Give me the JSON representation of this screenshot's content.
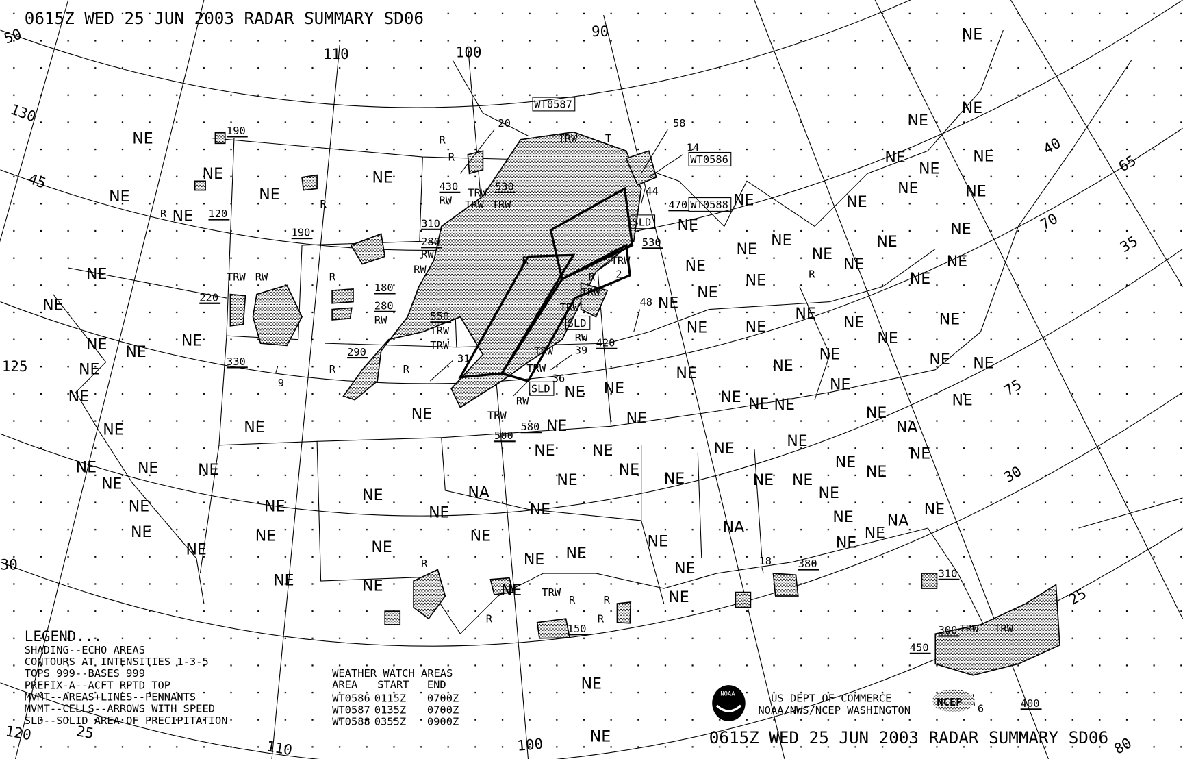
{
  "title_top": "0615Z WED 25 JUN 2003 RADAR SUMMARY SD06",
  "title_bottom": "0615Z WED 25 JUN 2003 RADAR SUMMARY SD06",
  "ne_label": "NE",
  "na_label": "NA",
  "legend": {
    "heading": "LEGEND...",
    "lines": [
      "SHADING--ECHO AREAS",
      "CONTOURS AT INTENSITIES 1-3-5",
      "TOPS 999--BASES 999",
      "PREFIX-A--ACFT RPTD TOP",
      "MVMT--AREAS+LINES--PENNANTS",
      "MVMT--CELLS--ARROWS WITH SPEED",
      "SLD--SOLID AREA OF PRECIPITATION"
    ]
  },
  "watch_table": {
    "heading": "WEATHER WATCH AREAS",
    "columns": [
      "AREA",
      "START",
      "END"
    ],
    "rows": [
      [
        "WT0586",
        "0115Z",
        "0700Z"
      ],
      [
        "WT0587",
        "0135Z",
        "0700Z"
      ],
      [
        "WT0588",
        "0355Z",
        "0900Z"
      ]
    ]
  },
  "credits": {
    "line1": "US DEPT OF COMMERCE",
    "line2": "NOAA/NWS/NCEP WASHINGTON",
    "noaa_logo": "NOAA",
    "ncep_logo": "NCEP"
  },
  "graticule_labels": [
    "50",
    "130",
    "45",
    "125",
    "120",
    "25",
    "110",
    "100",
    "110",
    "100",
    "90",
    "40",
    "65",
    "70",
    "35",
    "75",
    "30",
    "25",
    "80",
    "30"
  ],
  "tops": [
    "190",
    "120",
    "190",
    "220",
    "330",
    "180",
    "280",
    "290",
    "310",
    "280",
    "430",
    "530",
    "550",
    "500",
    "580",
    "420",
    "530",
    "470",
    "150",
    "380",
    "310",
    "300",
    "450",
    "400"
  ],
  "precip_types": [
    "R",
    "R",
    "R",
    "R",
    "R",
    "R",
    "R",
    "R",
    "R",
    "R",
    "R",
    "R",
    "R",
    "R",
    "R",
    "TRW",
    "RW",
    "RW",
    "RW",
    "RW",
    "RW",
    "RW",
    "RW",
    "TRW",
    "TRW",
    "TRW",
    "TRW",
    "TRW",
    "TRW",
    "TRW",
    "TRW",
    "TRW",
    "TRW",
    "TRW",
    "TRW",
    "TRW",
    "TRW",
    "TRW",
    "T"
  ],
  "cell_speeds": [
    "20",
    "58",
    "14",
    "44",
    "48",
    "39",
    "36",
    "31",
    "2",
    "9",
    "18",
    "6"
  ],
  "watch_boxes": [
    "WT0587",
    "WT0586",
    "WT0588"
  ],
  "sld_boxes": [
    "SLD",
    "SLD",
    "SLD"
  ],
  "colors": {
    "ink": "#000000",
    "background": "#ffffff"
  }
}
